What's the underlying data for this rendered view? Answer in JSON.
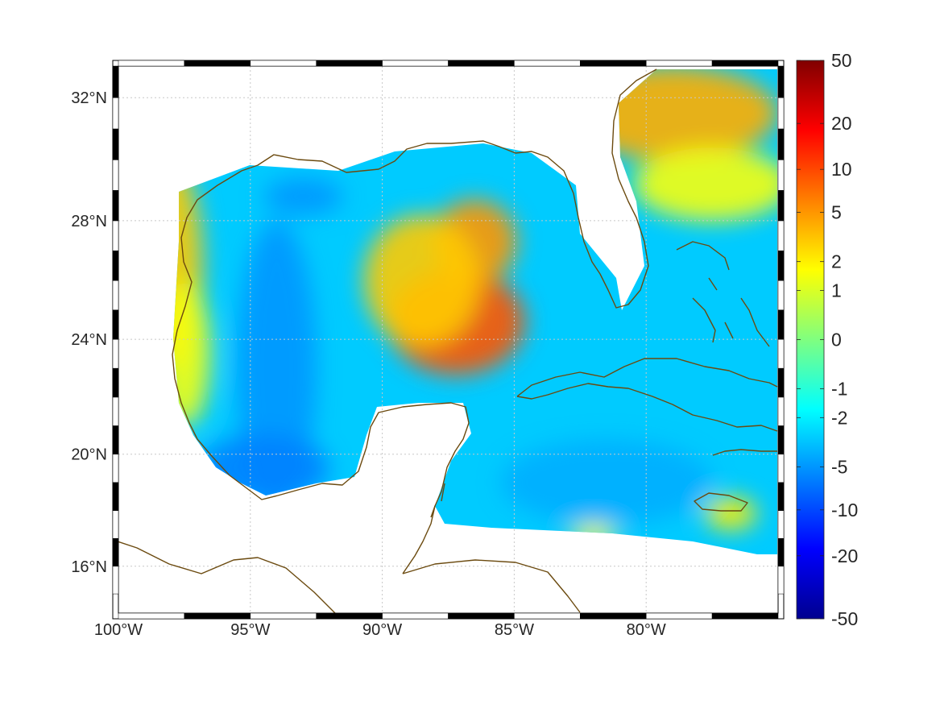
{
  "map": {
    "lon_range": [
      -100,
      -75
    ],
    "lat_range": [
      14.3,
      33
    ],
    "projection": "mercator",
    "grid": true,
    "frame": "black-and-white-dashed",
    "coast_color": "#6b4a0f",
    "lon_ticks": [
      {
        "value": -100,
        "label": "100°W"
      },
      {
        "value": -95,
        "label": "95°W"
      },
      {
        "value": -90,
        "label": "90°W"
      },
      {
        "value": -85,
        "label": "85°W"
      },
      {
        "value": -80,
        "label": "80°W"
      }
    ],
    "lat_ticks": [
      {
        "value": 32,
        "label": "32°N"
      },
      {
        "value": 28,
        "label": "28°N"
      },
      {
        "value": 24,
        "label": "24°N"
      },
      {
        "value": 20,
        "label": "20°N"
      },
      {
        "value": 16,
        "label": "16°N"
      }
    ]
  },
  "field": {
    "colormap": "jet",
    "background_level": -3,
    "blobs": [
      {
        "lon": -87.2,
        "lat": 24.6,
        "rlon": 2.6,
        "rlat": 1.8,
        "value": 9
      },
      {
        "lon": -86.5,
        "lat": 27.3,
        "rlon": 1.6,
        "rlat": 1.4,
        "value": 5
      },
      {
        "lon": -88.5,
        "lat": 26.0,
        "rlon": 2.2,
        "rlat": 2.2,
        "value": 3
      },
      {
        "lon": -98.0,
        "lat": 26.5,
        "rlon": 1.2,
        "rlat": 3.5,
        "value": 3
      },
      {
        "lon": -97.5,
        "lat": 23.5,
        "rlon": 1.0,
        "rlat": 2.5,
        "value": 1.5
      },
      {
        "lon": -79.0,
        "lat": 31.5,
        "rlon": 4.0,
        "rlat": 1.5,
        "value": 4
      },
      {
        "lon": -77.5,
        "lat": 29.2,
        "rlon": 3.0,
        "rlat": 1.2,
        "value": 1.5
      },
      {
        "lon": -94.0,
        "lat": 23.0,
        "rlon": 1.5,
        "rlat": 5.0,
        "value": -5
      },
      {
        "lon": -94.5,
        "lat": 19.5,
        "rlon": 2.5,
        "rlat": 1.2,
        "value": -6
      },
      {
        "lon": -93.0,
        "lat": 28.8,
        "rlon": 1.5,
        "rlat": 0.6,
        "value": -5
      },
      {
        "lon": -81.5,
        "lat": 19.0,
        "rlon": 4.0,
        "rlat": 1.5,
        "value": -4
      },
      {
        "lon": -76.8,
        "lat": 17.9,
        "rlon": 1.0,
        "rlat": 0.6,
        "value": 2
      },
      {
        "lon": -82.0,
        "lat": 17.1,
        "rlon": 0.9,
        "rlat": 0.4,
        "value": 1.5
      }
    ]
  },
  "colorbar": {
    "scale": "signed-log",
    "labels": [
      "50",
      "20",
      "10",
      "5",
      "2",
      "1",
      "0",
      "-1",
      "-2",
      "-5",
      "-10",
      "-20",
      "-50"
    ]
  }
}
